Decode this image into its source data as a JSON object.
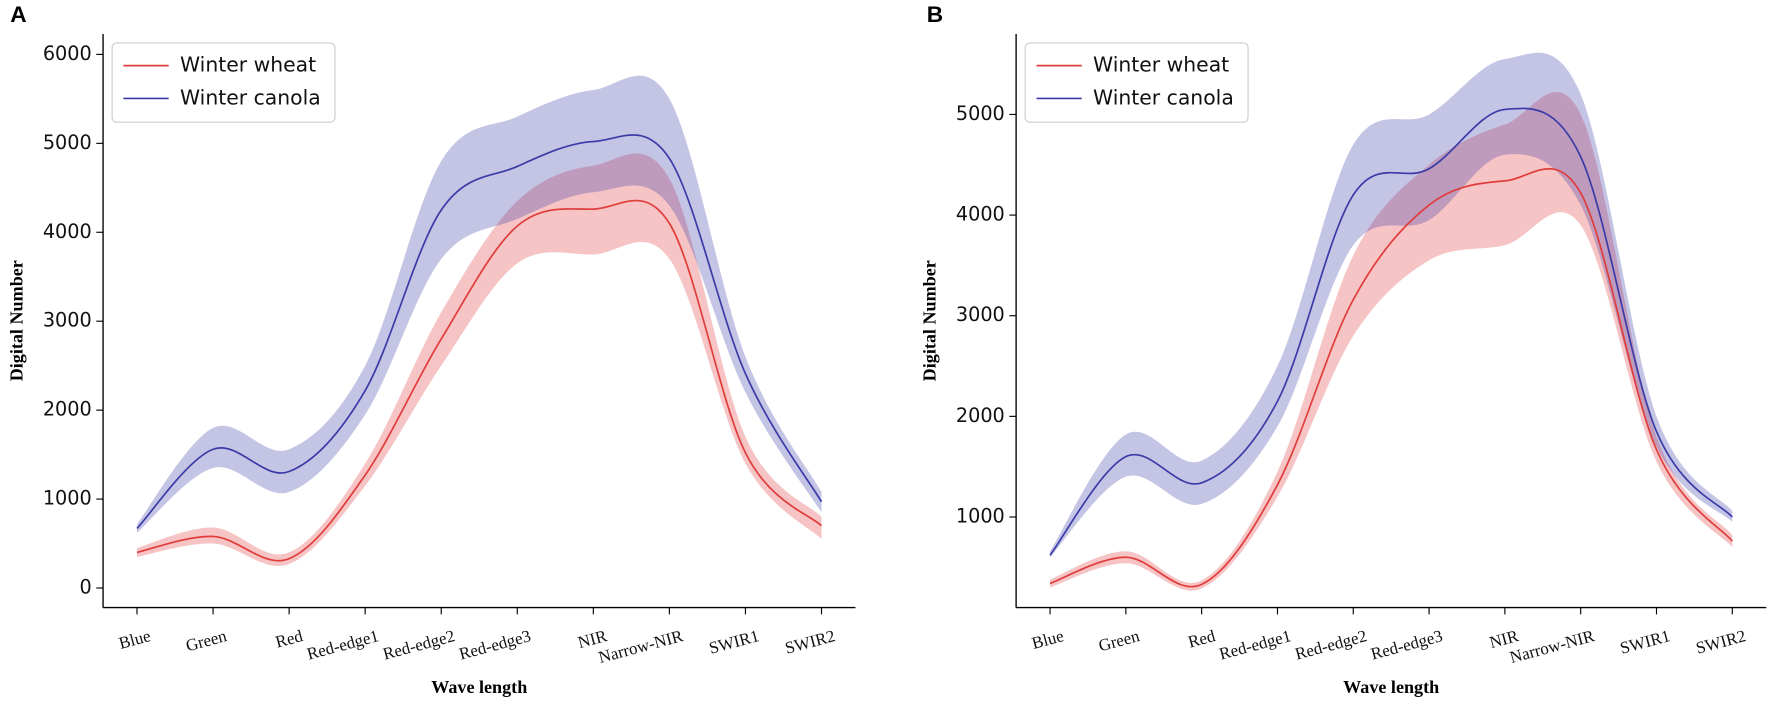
{
  "chart_data": [
    {
      "type": "line",
      "label": "A",
      "xlabel": "Wave length",
      "ylabel": "Digital Number",
      "categories": [
        "Blue",
        "Green",
        "Red",
        "Red-edge1",
        "Red-edge2",
        "Red-edge3",
        "NIR",
        "Narrow-NIR",
        "SWIR1",
        "SWIR2"
      ],
      "ylim": [
        -220,
        6230
      ],
      "yticks": [
        0,
        1000,
        2000,
        3000,
        4000,
        5000,
        6000
      ],
      "legend": "upper left",
      "series": [
        {
          "name": "Winter wheat",
          "color": "#e03c3c",
          "values": [
            400,
            580,
            330,
            1270,
            2800,
            4070,
            4260,
            4100,
            1520,
            700
          ],
          "lower": [
            350,
            500,
            270,
            1150,
            2500,
            3650,
            3750,
            3700,
            1400,
            550
          ],
          "upper": [
            450,
            680,
            400,
            1400,
            3100,
            4350,
            4750,
            4600,
            1700,
            800
          ]
        },
        {
          "name": "Winter canola",
          "color": "#3b3ba8",
          "values": [
            670,
            1560,
            1310,
            2220,
            4250,
            4740,
            5020,
            4830,
            2410,
            970
          ],
          "lower": [
            620,
            1350,
            1080,
            1950,
            3700,
            4150,
            4450,
            4300,
            2200,
            850
          ],
          "upper": [
            720,
            1800,
            1560,
            2500,
            4800,
            5300,
            5600,
            5500,
            2600,
            1080
          ]
        }
      ]
    },
    {
      "type": "line",
      "label": "B",
      "xlabel": "Wave length",
      "ylabel": "Digital Number",
      "categories": [
        "Blue",
        "Green",
        "Red",
        "Red-edge1",
        "Red-edge2",
        "Red-edge3",
        "NIR",
        "Narrow-NIR",
        "SWIR1",
        "SWIR2"
      ],
      "ylim": [
        100,
        5800
      ],
      "yticks": [
        1000,
        2000,
        3000,
        4000,
        5000
      ],
      "legend": "upper left",
      "series": [
        {
          "name": "Winter wheat",
          "color": "#e03c3c",
          "values": [
            340,
            600,
            330,
            1320,
            3160,
            4100,
            4340,
            4220,
            1670,
            760
          ],
          "lower": [
            300,
            540,
            290,
            1200,
            2800,
            3550,
            3700,
            3900,
            1550,
            700
          ],
          "upper": [
            380,
            660,
            370,
            1450,
            3600,
            4500,
            4900,
            5000,
            1800,
            820
          ]
        },
        {
          "name": "Winter canola",
          "color": "#3b3ba8",
          "values": [
            620,
            1600,
            1340,
            2150,
            4200,
            4460,
            5050,
            4580,
            1850,
            1000
          ],
          "lower": [
            600,
            1400,
            1130,
            1900,
            3700,
            3950,
            4600,
            4100,
            1700,
            950
          ],
          "upper": [
            660,
            1820,
            1560,
            2500,
            4700,
            5000,
            5550,
            5200,
            2000,
            1060
          ]
        }
      ]
    }
  ]
}
